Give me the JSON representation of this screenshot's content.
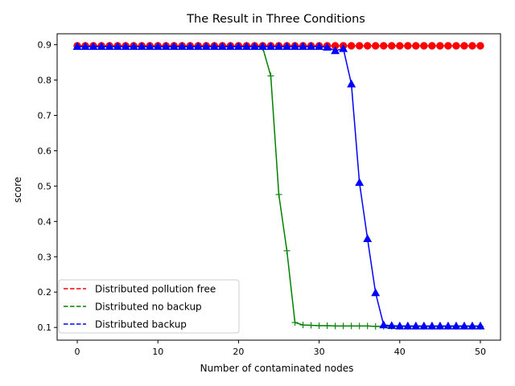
{
  "chart_data": {
    "type": "line",
    "title": "The Result in Three Conditions",
    "xlabel": "Number of contaminated nodes",
    "ylabel": "score",
    "xlim": [
      -2.5,
      52.5
    ],
    "ylim": [
      0.064,
      0.931
    ],
    "xticks": [
      0,
      10,
      20,
      30,
      40,
      50
    ],
    "yticks": [
      0.1,
      0.2,
      0.3,
      0.4,
      0.5,
      0.6,
      0.7,
      0.8,
      0.9
    ],
    "grid": false,
    "legend_position": "lower-left",
    "x": [
      0,
      1,
      2,
      3,
      4,
      5,
      6,
      7,
      8,
      9,
      10,
      11,
      12,
      13,
      14,
      15,
      16,
      17,
      18,
      19,
      20,
      21,
      22,
      23,
      24,
      25,
      26,
      27,
      28,
      29,
      30,
      31,
      32,
      33,
      34,
      35,
      36,
      37,
      38,
      39,
      40,
      41,
      42,
      43,
      44,
      45,
      46,
      47,
      48,
      49,
      50
    ],
    "series": [
      {
        "name": "Distributed pollution free",
        "color": "#ff0000",
        "linestyle": "solid",
        "legend_linestyle": "dashed",
        "marker": "circle",
        "values": [
          0.897,
          0.897,
          0.897,
          0.897,
          0.897,
          0.897,
          0.897,
          0.897,
          0.897,
          0.897,
          0.897,
          0.897,
          0.897,
          0.897,
          0.897,
          0.897,
          0.897,
          0.897,
          0.897,
          0.897,
          0.897,
          0.897,
          0.897,
          0.897,
          0.897,
          0.897,
          0.897,
          0.897,
          0.897,
          0.897,
          0.897,
          0.897,
          0.897,
          0.897,
          0.897,
          0.897,
          0.897,
          0.897,
          0.897,
          0.897,
          0.897,
          0.897,
          0.897,
          0.897,
          0.897,
          0.897,
          0.897,
          0.897,
          0.897,
          0.897,
          0.897
        ]
      },
      {
        "name": "Distributed no backup",
        "color": "#008000",
        "linestyle": "solid",
        "legend_linestyle": "dashed",
        "marker": "plus",
        "values": [
          0.895,
          0.895,
          0.895,
          0.895,
          0.895,
          0.895,
          0.895,
          0.895,
          0.895,
          0.895,
          0.895,
          0.895,
          0.895,
          0.895,
          0.895,
          0.895,
          0.895,
          0.895,
          0.895,
          0.895,
          0.895,
          0.895,
          0.895,
          0.892,
          0.812,
          0.476,
          0.317,
          0.114,
          0.107,
          0.106,
          0.105,
          0.105,
          0.104,
          0.104,
          0.104,
          0.104,
          0.104,
          0.103,
          0.103,
          0.103,
          0.103,
          0.103,
          0.103,
          0.103,
          0.103,
          0.103,
          0.103,
          0.103,
          0.103,
          0.103,
          0.103
        ]
      },
      {
        "name": "Distributed backup",
        "color": "#0000ff",
        "linestyle": "solid",
        "legend_linestyle": "dashed",
        "marker": "triangle",
        "values": [
          0.895,
          0.895,
          0.895,
          0.895,
          0.895,
          0.895,
          0.895,
          0.895,
          0.895,
          0.895,
          0.895,
          0.895,
          0.895,
          0.895,
          0.895,
          0.895,
          0.895,
          0.895,
          0.895,
          0.895,
          0.895,
          0.895,
          0.895,
          0.895,
          0.895,
          0.895,
          0.895,
          0.895,
          0.895,
          0.895,
          0.895,
          0.893,
          0.883,
          0.889,
          0.789,
          0.51,
          0.351,
          0.198,
          0.107,
          0.105,
          0.104,
          0.104,
          0.104,
          0.104,
          0.104,
          0.104,
          0.104,
          0.104,
          0.104,
          0.104,
          0.104
        ]
      }
    ]
  }
}
